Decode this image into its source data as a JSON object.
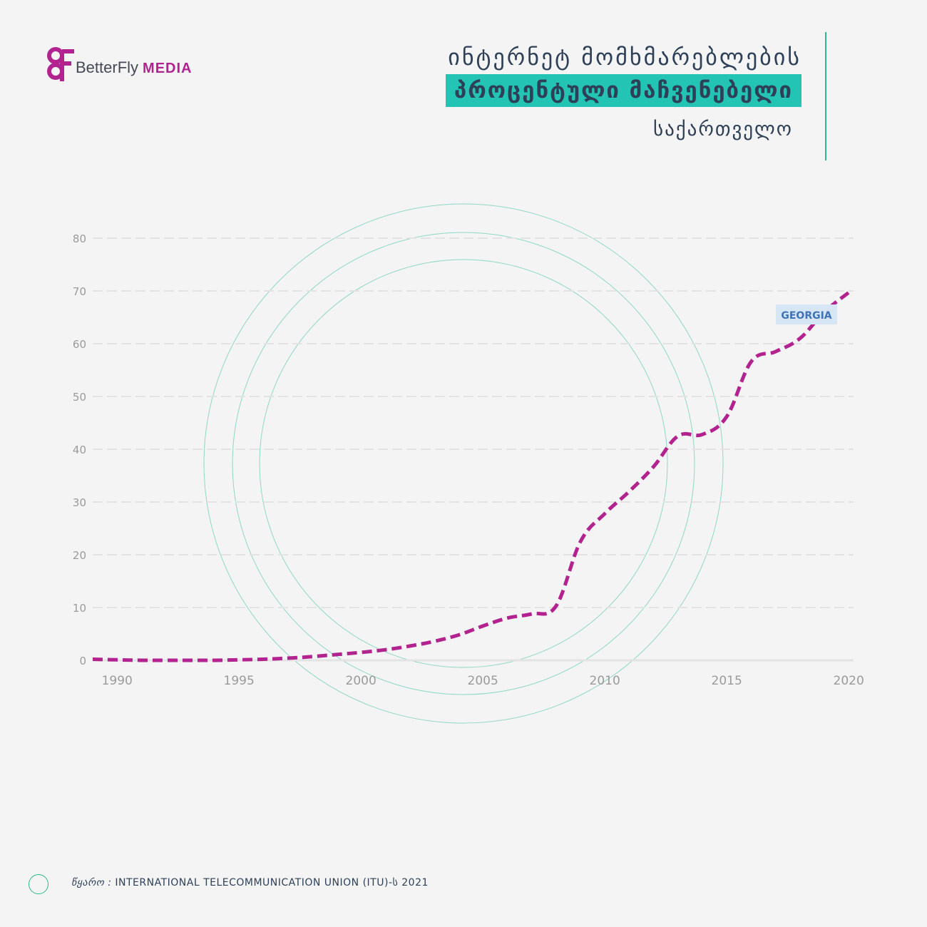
{
  "brand": {
    "name": "BetterFly",
    "sub": "MEDIA"
  },
  "title": {
    "line1": "ინტერნეტ მომხმარებლების",
    "line2": "პროცენტული მაჩვენებელი",
    "line3": "საქართველო"
  },
  "colors": {
    "line": "#b3238f",
    "accent": "#23c4b4",
    "circles": "#8fd8c4",
    "grid": "#e3e3e3",
    "ticks": "#9a9a9a",
    "label_bg": "#d6e6f4",
    "label_text": "#3f73b7"
  },
  "chart_data": {
    "type": "line",
    "title": "",
    "xlabel": "",
    "ylabel": "",
    "ylim": [
      0,
      80
    ],
    "xlim": [
      1989,
      2020.2
    ],
    "grid": true,
    "line_style": "dashed",
    "x_ticks": [
      1990,
      1995,
      2000,
      2005,
      2010,
      2015,
      2020
    ],
    "y_ticks": [
      0,
      10,
      20,
      30,
      40,
      50,
      60,
      70,
      80
    ],
    "series": [
      {
        "name": "GEORGIA",
        "x": [
          1989,
          1990,
          1991,
          1992,
          1993,
          1994,
          1995,
          1996,
          1997,
          1998,
          1999,
          2000,
          2001,
          2002,
          2003,
          2004,
          2005,
          2006,
          2007,
          2008,
          2009,
          2010,
          2011,
          2012,
          2013,
          2014,
          2015,
          2016,
          2017,
          2018,
          2019,
          2020
        ],
        "values": [
          0.2,
          0.1,
          0,
          0,
          0,
          0,
          0.1,
          0.2,
          0.4,
          0.7,
          1.1,
          1.5,
          2.0,
          2.7,
          3.6,
          4.8,
          6.5,
          8.0,
          8.8,
          10.3,
          22.5,
          27.8,
          32.0,
          36.7,
          42.5,
          42.8,
          46.2,
          56.6,
          58.5,
          61.0,
          66.0,
          69.7
        ]
      }
    ]
  },
  "source": {
    "label": "წყარო :",
    "text": "INTERNATIONAL TELECOMMUNICATION UNION (ITU)-ს 2021"
  }
}
